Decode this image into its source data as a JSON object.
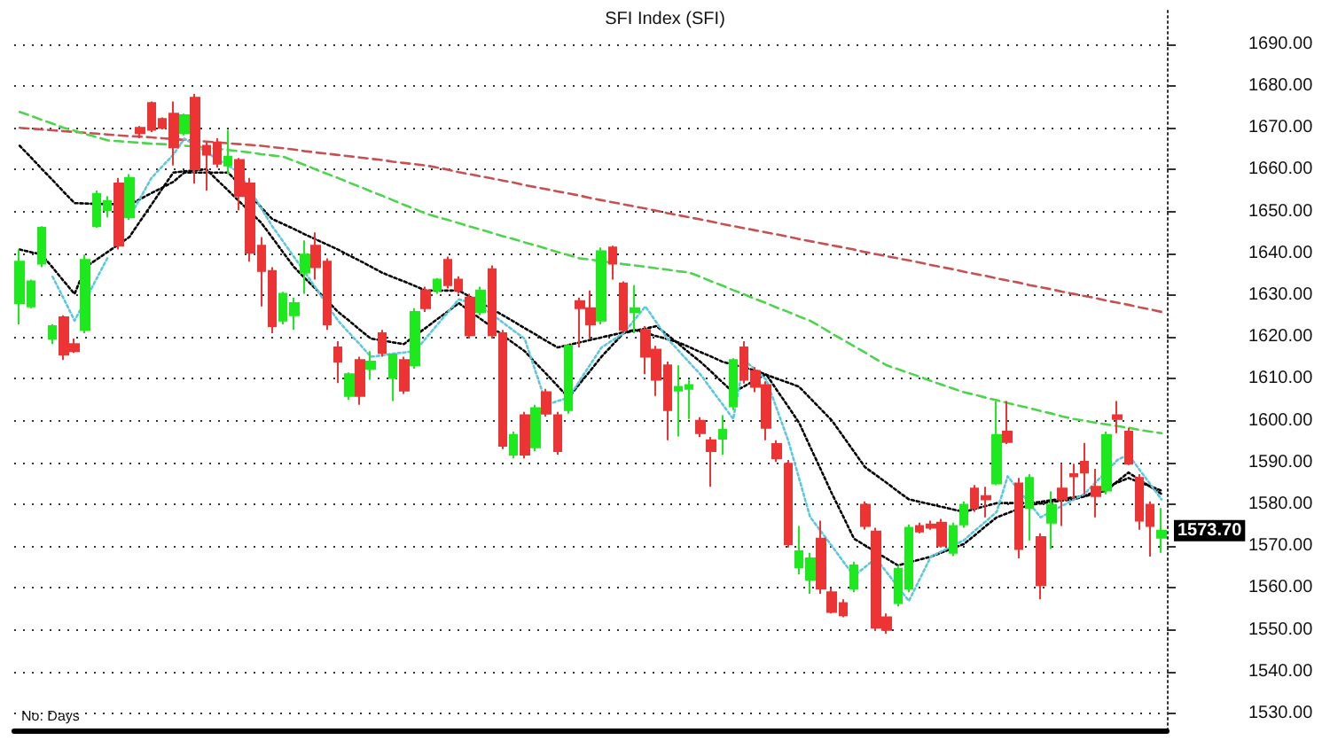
{
  "chart_data": {
    "type": "candlestick",
    "title": "SFI Index (SFI)",
    "categories": [
      null,
      null,
      null,
      null,
      null,
      null,
      null,
      null,
      null,
      null,
      null,
      null,
      null,
      null,
      null,
      null,
      null,
      null,
      null,
      null,
      null,
      null,
      null,
      null,
      null,
      null,
      null,
      null,
      null,
      null,
      null,
      null,
      null,
      null,
      null,
      null,
      null,
      null,
      null,
      null,
      null,
      null,
      null,
      null,
      null,
      null,
      null,
      null,
      null,
      null,
      null,
      null,
      null,
      null,
      null,
      null,
      null,
      null,
      null,
      null,
      null,
      null,
      null,
      null,
      null,
      null,
      null,
      null,
      null,
      null,
      null,
      null,
      null,
      null,
      null,
      null,
      null,
      null,
      null,
      null,
      null,
      null,
      null,
      null,
      null,
      null,
      null,
      null,
      null,
      null,
      null,
      null,
      null,
      null,
      null,
      null,
      null,
      null,
      null,
      null,
      null,
      null,
      null,
      null,
      null
    ],
    "ohlc": [
      [
        1628.1,
        1640.9,
        1623.0,
        1638.0
      ],
      [
        1627.3,
        1633.7,
        1626.9,
        1633.3
      ],
      [
        1637.5,
        1646.5,
        1636.7,
        1646.1
      ],
      [
        1619.6,
        1623.0,
        1618.3,
        1622.6
      ],
      [
        1624.7,
        1625.2,
        1614.5,
        1615.8
      ],
      [
        1618.3,
        1619.6,
        1616.2,
        1616.6
      ],
      [
        1621.7,
        1639.7,
        1620.9,
        1638.4
      ],
      [
        1646.5,
        1655.0,
        1646.1,
        1654.2
      ],
      [
        1650.3,
        1653.7,
        1648.6,
        1652.5
      ],
      [
        1656.7,
        1658.0,
        1640.9,
        1641.8
      ],
      [
        1648.6,
        1658.9,
        1648.0,
        1658.0
      ],
      [
        1670.0,
        1670.4,
        1667.5,
        1668.7
      ],
      [
        1675.9,
        1676.3,
        1669.0,
        1669.5
      ],
      [
        1672.1,
        1672.5,
        1669.6,
        1670.0
      ],
      [
        1673.4,
        1676.3,
        1661.0,
        1665.3
      ],
      [
        1668.7,
        1673.4,
        1668.2,
        1673.0
      ],
      [
        1677.2,
        1678.1,
        1656.7,
        1660.1
      ],
      [
        1665.7,
        1666.5,
        1655.0,
        1663.6
      ],
      [
        1666.5,
        1667.5,
        1660.5,
        1661.4
      ],
      [
        1661.0,
        1669.5,
        1658.9,
        1663.1
      ],
      [
        1662.3,
        1662.8,
        1650.3,
        1653.7
      ],
      [
        1656.7,
        1658.0,
        1638.0,
        1640.1
      ],
      [
        1641.8,
        1643.9,
        1627.3,
        1635.8
      ],
      [
        1635.8,
        1636.7,
        1620.9,
        1622.6
      ],
      [
        1623.9,
        1630.8,
        1623.0,
        1630.3
      ],
      [
        1625.2,
        1629.4,
        1621.7,
        1628.1
      ],
      [
        1635.4,
        1643.1,
        1630.3,
        1639.7
      ],
      [
        1641.8,
        1645.0,
        1633.7,
        1636.7
      ],
      [
        1638.0,
        1638.8,
        1621.7,
        1623.0
      ],
      [
        1617.5,
        1619.0,
        1609.0,
        1614.1
      ],
      [
        1605.9,
        1611.5,
        1605.0,
        1611.1
      ],
      [
        1614.5,
        1615.3,
        1603.8,
        1605.9
      ],
      [
        1612.4,
        1616.6,
        1609.8,
        1614.1
      ],
      [
        1620.9,
        1621.7,
        1615.3,
        1616.2
      ],
      [
        1610.2,
        1616.0,
        1604.7,
        1615.8
      ],
      [
        1614.5,
        1615.3,
        1606.4,
        1607.2
      ],
      [
        1613.2,
        1626.9,
        1612.4,
        1626.0
      ],
      [
        1631.1,
        1632.0,
        1626.0,
        1626.9
      ],
      [
        1631.1,
        1634.1,
        1630.3,
        1633.7
      ],
      [
        1638.4,
        1639.2,
        1631.6,
        1632.4
      ],
      [
        1633.7,
        1634.5,
        1630.3,
        1631.1
      ],
      [
        1629.4,
        1630.3,
        1619.6,
        1620.4
      ],
      [
        1626.0,
        1632.0,
        1625.2,
        1631.1
      ],
      [
        1636.2,
        1637.1,
        1619.6,
        1620.4
      ],
      [
        1620.9,
        1621.7,
        1593.2,
        1594.0
      ],
      [
        1591.9,
        1597.4,
        1591.0,
        1596.6
      ],
      [
        1601.3,
        1602.1,
        1591.0,
        1591.9
      ],
      [
        1593.6,
        1603.8,
        1592.7,
        1603.0
      ],
      [
        1606.8,
        1607.6,
        1601.0,
        1601.7
      ],
      [
        1601.3,
        1602.1,
        1591.9,
        1592.7
      ],
      [
        1602.5,
        1618.3,
        1601.7,
        1617.9
      ],
      [
        1628.6,
        1629.4,
        1617.5,
        1626.9
      ],
      [
        1626.9,
        1631.1,
        1619.6,
        1623.0
      ],
      [
        1623.9,
        1641.4,
        1623.0,
        1640.5
      ],
      [
        1641.4,
        1641.8,
        1633.7,
        1637.5
      ],
      [
        1632.8,
        1633.3,
        1620.9,
        1621.7
      ],
      [
        1626.0,
        1632.4,
        1620.9,
        1626.9
      ],
      [
        1621.7,
        1622.6,
        1611.1,
        1615.3
      ],
      [
        1617.0,
        1617.9,
        1605.9,
        1609.8
      ],
      [
        1613.2,
        1614.1,
        1595.3,
        1602.5
      ],
      [
        1607.2,
        1613.2,
        1596.2,
        1608.1
      ],
      [
        1607.6,
        1609.8,
        1600.4,
        1608.5
      ],
      [
        1600.0,
        1600.8,
        1596.1,
        1597.0
      ],
      [
        1595.3,
        1596.1,
        1584.2,
        1592.7
      ],
      [
        1595.7,
        1601.3,
        1591.9,
        1597.8
      ],
      [
        1603.4,
        1614.9,
        1602.5,
        1614.5
      ],
      [
        1617.5,
        1619.0,
        1608.9,
        1609.8
      ],
      [
        1611.9,
        1612.8,
        1606.8,
        1608.1
      ],
      [
        1608.5,
        1609.4,
        1595.3,
        1598.3
      ],
      [
        1594.4,
        1595.3,
        1590.2,
        1591.0
      ],
      [
        1589.7,
        1590.6,
        1569.7,
        1570.5
      ],
      [
        1565.0,
        1574.8,
        1563.3,
        1568.8
      ],
      [
        1562.0,
        1568.4,
        1558.6,
        1567.1
      ],
      [
        1571.8,
        1576.1,
        1558.6,
        1559.9
      ],
      [
        1559.0,
        1559.9,
        1553.9,
        1554.3
      ],
      [
        1556.4,
        1557.3,
        1553.0,
        1553.5
      ],
      [
        1559.9,
        1566.3,
        1559.0,
        1565.4
      ],
      [
        1579.9,
        1580.7,
        1574.0,
        1574.8
      ],
      [
        1573.5,
        1574.4,
        1549.7,
        1550.5
      ],
      [
        1553.0,
        1553.9,
        1549.1,
        1550.0
      ],
      [
        1556.4,
        1565.4,
        1555.6,
        1564.6
      ],
      [
        1559.9,
        1575.2,
        1559.0,
        1574.4
      ],
      [
        1574.8,
        1575.6,
        1573.1,
        1573.5
      ],
      [
        1575.2,
        1576.1,
        1573.9,
        1574.4
      ],
      [
        1575.6,
        1576.5,
        1569.7,
        1570.1
      ],
      [
        1568.4,
        1575.6,
        1567.6,
        1574.8
      ],
      [
        1575.2,
        1580.7,
        1574.4,
        1579.9
      ],
      [
        1583.8,
        1584.6,
        1578.2,
        1579.1
      ],
      [
        1582.0,
        1584.2,
        1576.9,
        1581.2
      ],
      [
        1585.0,
        1604.7,
        1584.6,
        1596.6
      ],
      [
        1597.4,
        1604.7,
        1594.4,
        1594.9
      ],
      [
        1585.0,
        1586.3,
        1567.1,
        1569.3
      ],
      [
        1579.1,
        1587.2,
        1571.4,
        1586.3
      ],
      [
        1572.2,
        1573.1,
        1557.3,
        1560.7
      ],
      [
        1575.6,
        1583.1,
        1569.3,
        1579.9
      ],
      [
        1583.8,
        1589.7,
        1574.8,
        1581.2
      ],
      [
        1587.2,
        1589.7,
        1581.2,
        1586.7
      ],
      [
        1590.2,
        1594.7,
        1582.4,
        1587.6
      ],
      [
        1584.2,
        1588.5,
        1576.9,
        1582.0
      ],
      [
        1583.3,
        1597.4,
        1582.4,
        1596.6
      ],
      [
        1601.3,
        1604.7,
        1597.0,
        1600.4
      ],
      [
        1597.4,
        1598.3,
        1589.4,
        1589.7
      ],
      [
        1586.3,
        1587.2,
        1573.9,
        1576.1
      ],
      [
        1579.9,
        1580.7,
        1567.5,
        1574.8
      ],
      [
        1572.0,
        1579.1,
        1568.4,
        1573.7
      ]
    ],
    "series": [
      {
        "type": "line",
        "color": "#c85050",
        "line_style": "dashed",
        "values": [
          1670.0,
          1669.8,
          1669.6,
          1669.4,
          1669.2,
          1669.0,
          1668.8,
          1668.6,
          1668.4,
          1668.2,
          1668.0,
          1667.9,
          1667.7,
          1667.5,
          1667.3,
          1667.1,
          1666.9,
          1666.7,
          1666.5,
          1666.3,
          1666.1,
          1665.9,
          1665.7,
          1665.4,
          1665.1,
          1664.8,
          1664.4,
          1664.1,
          1663.8,
          1663.5,
          1663.2,
          1662.9,
          1662.6,
          1662.3,
          1661.9,
          1661.6,
          1661.3,
          1661.0,
          1660.5,
          1660.0,
          1659.4,
          1658.9,
          1658.4,
          1657.9,
          1657.4,
          1656.9,
          1656.3,
          1655.8,
          1655.3,
          1654.8,
          1654.3,
          1653.8,
          1653.2,
          1652.7,
          1652.2,
          1651.7,
          1651.2,
          1650.7,
          1650.2,
          1649.6,
          1649.1,
          1648.6,
          1648.1,
          1647.6,
          1647.0,
          1646.5,
          1646.0,
          1645.5,
          1645.0,
          1644.5,
          1644.0,
          1643.4,
          1642.9,
          1642.4,
          1641.9,
          1641.4,
          1640.9,
          1640.3,
          1639.8,
          1639.3,
          1638.8,
          1638.3,
          1637.8,
          1637.2,
          1636.7,
          1636.2,
          1635.6,
          1635.1,
          1634.6,
          1634.0,
          1633.5,
          1633.0,
          1632.4,
          1631.9,
          1631.4,
          1630.8,
          1630.3,
          1629.8,
          1629.3,
          1628.7,
          1628.2,
          1627.7,
          1627.1,
          1626.6,
          1626.0
        ]
      },
      {
        "type": "line",
        "color": "#4cd44c",
        "line_style": "dashed",
        "values": [
          1673.8,
          1672.9,
          1671.9,
          1671.0,
          1670.0,
          1669.3,
          1668.5,
          1667.8,
          1667.0,
          1666.8,
          1666.6,
          1666.4,
          1666.2,
          1666.1,
          1665.9,
          1665.7,
          1665.5,
          1665.3,
          1665.0,
          1664.7,
          1664.4,
          1664.1,
          1663.7,
          1663.4,
          1663.1,
          1662.1,
          1661.1,
          1660.0,
          1659.0,
          1658.0,
          1656.9,
          1655.9,
          1654.8,
          1653.8,
          1652.7,
          1651.6,
          1650.6,
          1649.5,
          1648.7,
          1648.0,
          1647.2,
          1646.4,
          1645.7,
          1644.9,
          1644.1,
          1643.4,
          1642.6,
          1641.9,
          1641.1,
          1640.3,
          1639.6,
          1638.8,
          1638.5,
          1638.1,
          1637.8,
          1637.4,
          1637.1,
          1636.8,
          1636.4,
          1636.1,
          1635.7,
          1635.4,
          1634.4,
          1633.3,
          1632.3,
          1631.2,
          1630.2,
          1629.1,
          1628.1,
          1627.0,
          1626.0,
          1624.9,
          1623.9,
          1622.4,
          1620.8,
          1619.3,
          1617.8,
          1616.3,
          1614.7,
          1613.2,
          1612.3,
          1611.4,
          1610.5,
          1609.5,
          1608.6,
          1607.7,
          1606.8,
          1606.2,
          1605.5,
          1604.9,
          1604.2,
          1603.6,
          1603.0,
          1602.3,
          1601.7,
          1601.0,
          1600.4,
          1600.0,
          1599.5,
          1599.1,
          1598.7,
          1598.3,
          1597.8,
          1597.4,
          1597.0
        ]
      },
      {
        "type": "line",
        "color": "#000000",
        "line_style": "dotted",
        "values": [
          1665.7,
          1663.0,
          1660.2,
          1657.5,
          1654.7,
          1652.0,
          1651.9,
          1651.8,
          1651.8,
          1651.7,
          1651.6,
          1653.0,
          1654.4,
          1655.7,
          1657.1,
          1659.3,
          1659.3,
          1659.3,
          1659.3,
          1659.3,
          1656.5,
          1653.8,
          1651.0,
          1648.2,
          1647.0,
          1645.8,
          1644.5,
          1643.3,
          1642.1,
          1640.9,
          1639.5,
          1638.2,
          1636.8,
          1635.4,
          1634.3,
          1633.3,
          1632.2,
          1631.1,
          1631.1,
          1631.1,
          1631.1,
          1629.6,
          1628.2,
          1626.7,
          1625.2,
          1623.7,
          1622.1,
          1620.6,
          1619.0,
          1617.5,
          1618.1,
          1618.7,
          1619.3,
          1619.9,
          1620.5,
          1621.1,
          1621.7,
          1621.0,
          1620.2,
          1619.5,
          1618.7,
          1617.6,
          1616.4,
          1615.3,
          1614.1,
          1613.4,
          1612.7,
          1612.0,
          1611.0,
          1610.0,
          1609.1,
          1608.1,
          1605.4,
          1602.7,
          1600.0,
          1596.3,
          1592.6,
          1588.9,
          1587.0,
          1585.1,
          1583.1,
          1581.2,
          1580.6,
          1580.0,
          1579.4,
          1578.8,
          1578.2,
          1578.9,
          1579.6,
          1580.3,
          1580.3,
          1580.3,
          1580.3,
          1580.6,
          1581.0,
          1581.3,
          1581.7,
          1582.0,
          1583.1,
          1584.2,
          1585.2,
          1586.3,
          1585.3,
          1584.3,
          1583.3
        ]
      },
      {
        "type": "line",
        "color": "#000000",
        "line_style": "dotted",
        "values": [
          1640.9,
          1640.3,
          1639.7,
          1636.6,
          1633.4,
          1630.3,
          1636.7,
          1638.5,
          1640.3,
          1642.1,
          1643.9,
          1647.8,
          1651.6,
          1655.5,
          1659.3,
          1659.6,
          1659.8,
          1660.1,
          1657.5,
          1655.0,
          1652.4,
          1649.9,
          1647.3,
          1643.8,
          1640.2,
          1636.7,
          1634.0,
          1631.4,
          1628.7,
          1626.0,
          1623.9,
          1621.7,
          1619.6,
          1619.2,
          1618.7,
          1618.3,
          1620.3,
          1622.2,
          1624.2,
          1626.1,
          1628.1,
          1626.2,
          1624.3,
          1622.4,
          1620.4,
          1618.5,
          1616.6,
          1613.8,
          1611.1,
          1608.3,
          1605.5,
          1608.8,
          1612.0,
          1615.3,
          1618.1,
          1620.9,
          1621.5,
          1622.0,
          1622.6,
          1620.5,
          1618.4,
          1616.2,
          1614.1,
          1611.7,
          1609.2,
          1606.8,
          1608.2,
          1609.7,
          1611.1,
          1607.2,
          1603.4,
          1599.5,
          1593.8,
          1588.2,
          1582.5,
          1577.2,
          1571.8,
          1570.2,
          1568.6,
          1567.0,
          1565.4,
          1566.1,
          1566.8,
          1567.5,
          1568.5,
          1569.5,
          1570.5,
          1572.6,
          1574.8,
          1576.9,
          1577.9,
          1578.9,
          1579.9,
          1580.2,
          1580.6,
          1580.9,
          1581.2,
          1581.9,
          1582.6,
          1583.3,
          1585.5,
          1587.6,
          1585.9,
          1584.2,
          1582.5
        ]
      },
      {
        "type": "line",
        "color": "#5cc8dc",
        "line_style": "dotted",
        "values": [
          null,
          null,
          null,
          1634.4,
          1629.2,
          1623.9,
          1628.9,
          1633.9,
          1638.9,
          null,
          1648.6,
          1653.3,
          1658.0,
          1660.8,
          1663.6,
          1667.4,
          1665.8,
          1664.2,
          1662.5,
          1660.9,
          1659.3,
          1655.0,
          1650.8,
          1646.5,
          1642.8,
          1639.1,
          1635.4,
          1631.6,
          1627.7,
          1623.9,
          1621.0,
          1618.2,
          1615.3,
          1615.6,
          1616.0,
          1616.3,
          1616.6,
          1619.7,
          1622.8,
          1625.9,
          1629.0,
          1628.2,
          1627.3,
          1625.4,
          1623.5,
          1621.5,
          1619.6,
          1611.7,
          1603.8,
          1604.7,
          1605.5,
          1609.5,
          1613.5,
          1617.5,
          1619.2,
          1620.9,
          1624.1,
          1627.3,
          1623.5,
          1619.6,
          1616.8,
          1613.9,
          1611.1,
          1607.5,
          1604.0,
          1600.4,
          1614.5,
          1612.2,
          1609.8,
          1602.6,
          1595.3,
          1586.2,
          1577.0,
          1573.5,
          1570.0,
          1566.4,
          1562.9,
          1565.0,
          1567.1,
          1563.7,
          1560.3,
          1556.9,
          1562.2,
          1567.5,
          1568.8,
          1570.1,
          1571.4,
          1573.7,
          1575.9,
          1578.2,
          1586.7,
          1583.4,
          1580.2,
          1576.9,
          1578.3,
          1579.7,
          1581.1,
          1582.5,
          1585.2,
          1587.9,
          1590.6,
          1591.9,
          1588.3,
          1584.8,
          1581.2
        ]
      }
    ],
    "ylim": [
      1526,
      1698
    ],
    "yticks": [
      {
        "value": 1530,
        "label": "1530.00"
      },
      {
        "value": 1540,
        "label": "1540.00"
      },
      {
        "value": 1550,
        "label": "1550.00"
      },
      {
        "value": 1560,
        "label": "1560.00"
      },
      {
        "value": 1570,
        "label": "1570.00"
      },
      {
        "value": 1580,
        "label": "1580.00"
      },
      {
        "value": 1590,
        "label": "1590.00"
      },
      {
        "value": 1600,
        "label": "1600.00"
      },
      {
        "value": 1610,
        "label": "1610.00"
      },
      {
        "value": 1620,
        "label": "1620.00"
      },
      {
        "value": 1630,
        "label": "1630.00"
      },
      {
        "value": 1640,
        "label": "1640.00"
      },
      {
        "value": 1650,
        "label": "1650.00"
      },
      {
        "value": 1660,
        "label": "1660.00"
      },
      {
        "value": 1670,
        "label": "1670.00"
      },
      {
        "value": 1680,
        "label": "1680.00"
      },
      {
        "value": 1690,
        "label": "1690.00"
      }
    ],
    "tick_labels": "y",
    "grid": "y",
    "annotations": [
      "1573.70",
      "No. Days"
    ]
  }
}
